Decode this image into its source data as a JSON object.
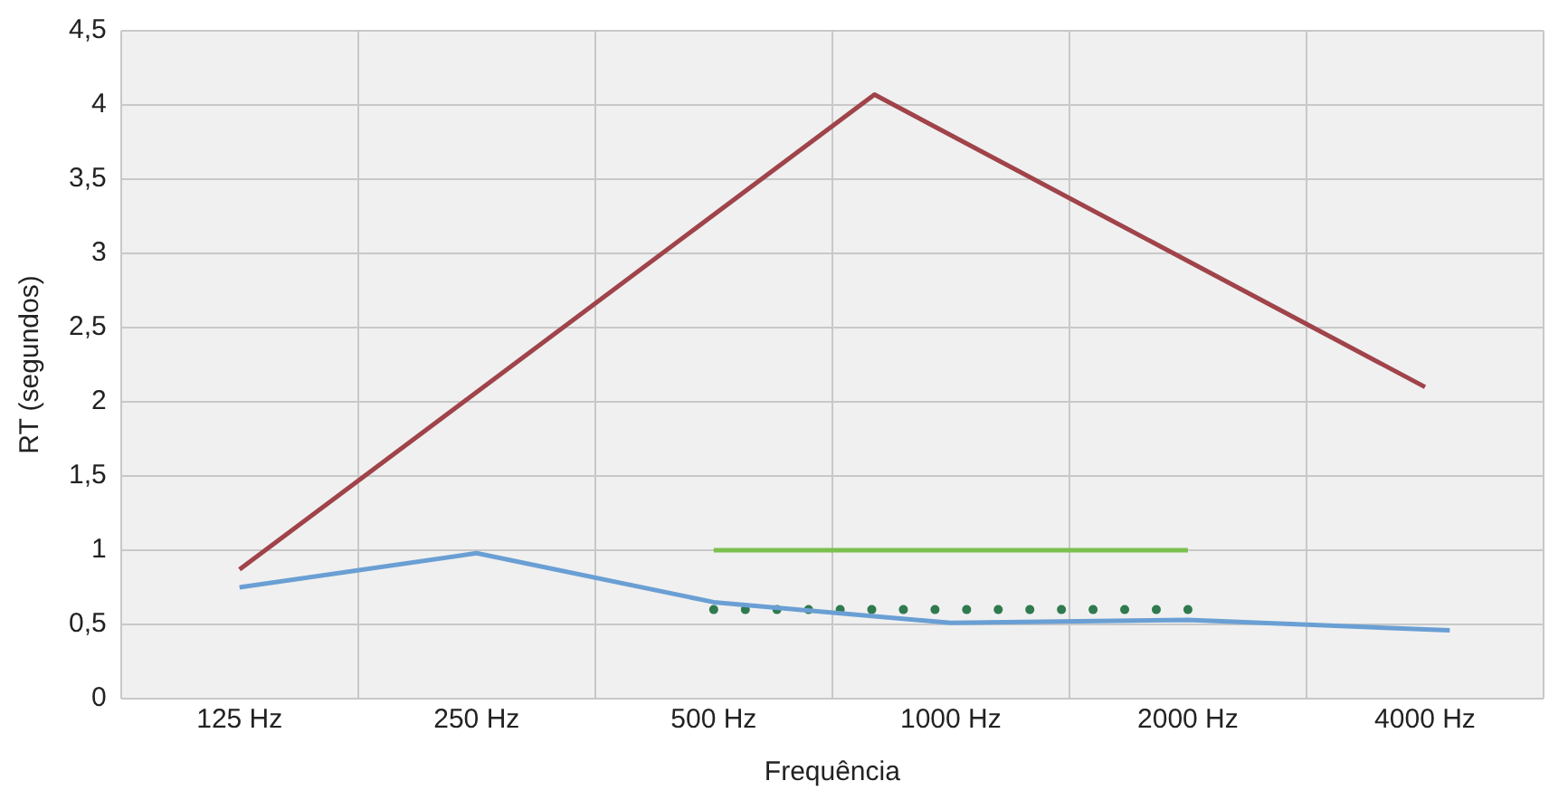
{
  "chart_data": {
    "type": "line",
    "xlabel": "Frequência",
    "ylabel": "RT (segundos)",
    "log": "x",
    "xlim": [
      88.39,
      5656.85
    ],
    "xticks": [
      {
        "value": 88.39,
        "label": null
      },
      {
        "value": 125,
        "label": "125 Hz"
      },
      {
        "value": 176.78,
        "label": null
      },
      {
        "value": 250,
        "label": "250 Hz"
      },
      {
        "value": 353.55,
        "label": null
      },
      {
        "value": 500,
        "label": "500 Hz"
      },
      {
        "value": 707.11,
        "label": null
      },
      {
        "value": 1000,
        "label": "1000 Hz"
      },
      {
        "value": 1414.21,
        "label": null
      },
      {
        "value": 2000,
        "label": "2000 Hz"
      },
      {
        "value": 2828.43,
        "label": null
      },
      {
        "value": 4000,
        "label": "4000 Hz"
      },
      {
        "value": 5656.85,
        "label": null
      }
    ],
    "ylim": [
      0,
      4.5
    ],
    "yticks": [
      0,
      {
        "value": 0.5,
        "label": "0,5"
      },
      1,
      {
        "value": 1.5,
        "label": "1,5"
      },
      2,
      {
        "value": 2.5,
        "label": "2,5"
      },
      3,
      {
        "value": 3.5,
        "label": "3,5"
      },
      4,
      {
        "value": 4.5,
        "label": "4,5"
      }
    ],
    "grid": true,
    "legend": false,
    "marker": "none",
    "series": [
      {
        "color": "#a0434a",
        "x": [
          125,
          800,
          4000
        ],
        "values": [
          0.87,
          4.07,
          2.1
        ]
      },
      {
        "color": "#6a9fd4",
        "x": [
          125,
          250,
          500,
          1000,
          2000,
          4300
        ],
        "values": [
          0.75,
          0.98,
          0.65,
          0.51,
          0.53,
          0.46
        ]
      },
      {
        "color": "#7bbf4e",
        "x": [
          500,
          2000
        ],
        "values": [
          1.0,
          1.0
        ]
      },
      {
        "color": "#2f7a4e",
        "x": [
          500,
          2000
        ],
        "values": [
          0.6,
          0.6
        ],
        "line_style": "dotted"
      }
    ]
  }
}
